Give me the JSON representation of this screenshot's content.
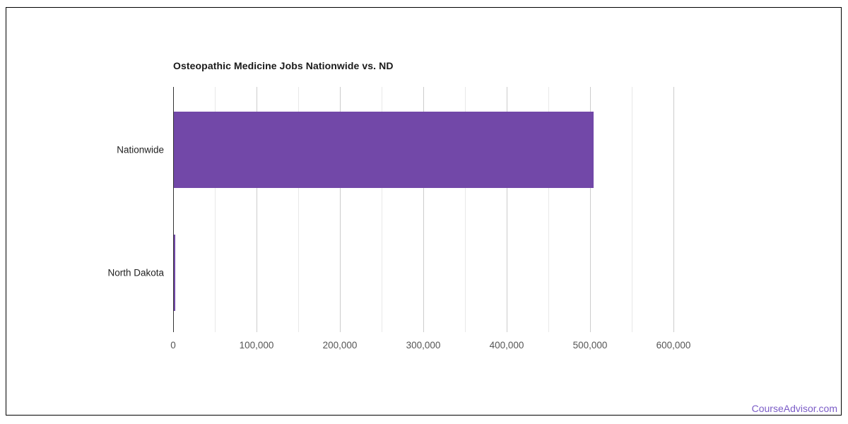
{
  "page": {
    "footer_link": "CourseAdvisor.com"
  },
  "colors": {
    "bar": "#7248a8",
    "link": "#7b5cc7",
    "axis": "#333333",
    "gridline_major": "#cccccc",
    "gridline_minor": "#e8e8e8",
    "title_text": "#1a1a1a",
    "tick_text": "#555555",
    "category_text": "#222222"
  },
  "chart_data": {
    "type": "bar",
    "orientation": "horizontal",
    "title": "Osteopathic Medicine Jobs Nationwide vs. ND",
    "categories": [
      "Nationwide",
      "North Dakota"
    ],
    "values": [
      503000,
      1500
    ],
    "xlabel": "",
    "ylabel": "",
    "xlim": [
      0,
      650000
    ],
    "x_tick_values": [
      0,
      100000,
      200000,
      300000,
      400000,
      500000,
      600000
    ],
    "x_tick_labels": [
      "0",
      "100,000",
      "200,000",
      "300,000",
      "400,000",
      "500,000",
      "600,000"
    ],
    "minor_gridline_interval": 50000,
    "grid": true,
    "legend": "none",
    "bar_color": "#7248a8"
  }
}
